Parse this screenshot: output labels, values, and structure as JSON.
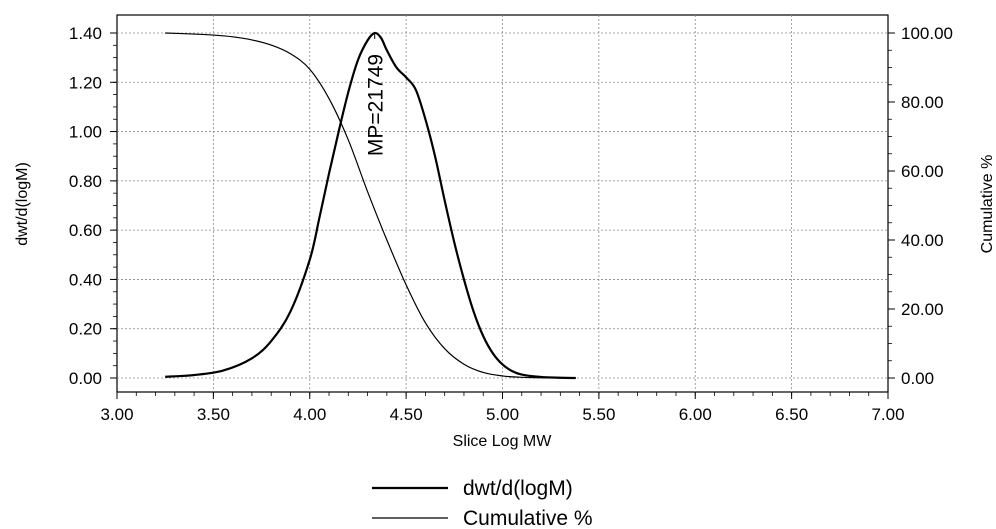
{
  "chart_data": {
    "type": "line",
    "xlabel": "Slice Log MW",
    "ylabel": "dwt/d(logM)",
    "y2label": "Cumulative %",
    "xlim": [
      3.0,
      7.0
    ],
    "ylim": [
      0.0,
      1.4
    ],
    "y2lim": [
      0.0,
      100.0
    ],
    "x_ticks": [
      "3.00",
      "3.50",
      "4.00",
      "4.50",
      "5.00",
      "5.50",
      "6.00",
      "6.50",
      "7.00"
    ],
    "y_ticks": [
      "0.00",
      "0.20",
      "0.40",
      "0.60",
      "0.80",
      "1.00",
      "1.20",
      "1.40"
    ],
    "y2_ticks": [
      "0.00",
      "20.00",
      "40.00",
      "60.00",
      "80.00",
      "100.00"
    ],
    "grid": true,
    "legend_position": "bottom-center",
    "annotation": {
      "text": "MP=21749",
      "x": 4.337
    },
    "series": [
      {
        "name": "dwt/d(logM)",
        "axis": "left",
        "x": [
          3.25,
          3.4,
          3.55,
          3.7,
          3.8,
          3.9,
          4.0,
          4.05,
          4.1,
          4.15,
          4.2,
          4.25,
          4.3,
          4.337,
          4.37,
          4.4,
          4.45,
          4.5,
          4.55,
          4.6,
          4.65,
          4.7,
          4.75,
          4.8,
          4.85,
          4.9,
          4.95,
          5.0,
          5.05,
          5.1,
          5.2,
          5.3,
          5.38
        ],
        "values": [
          0.005,
          0.012,
          0.03,
          0.08,
          0.15,
          0.27,
          0.48,
          0.65,
          0.83,
          1.0,
          1.16,
          1.29,
          1.37,
          1.4,
          1.38,
          1.33,
          1.26,
          1.22,
          1.17,
          1.05,
          0.9,
          0.72,
          0.55,
          0.4,
          0.27,
          0.17,
          0.1,
          0.055,
          0.028,
          0.014,
          0.004,
          0.001,
          0.0
        ]
      },
      {
        "name": "Cumulative %",
        "axis": "right",
        "x": [
          3.25,
          3.4,
          3.5,
          3.6,
          3.7,
          3.8,
          3.9,
          4.0,
          4.1,
          4.2,
          4.3,
          4.4,
          4.5,
          4.6,
          4.7,
          4.8,
          4.9,
          5.0,
          5.1,
          5.2,
          5.3,
          5.38
        ],
        "values": [
          100.0,
          99.7,
          99.4,
          98.9,
          98.0,
          96.5,
          94.0,
          89.5,
          81.0,
          69.0,
          54.0,
          40.0,
          27.0,
          16.0,
          8.5,
          4.0,
          1.6,
          0.6,
          0.2,
          0.05,
          0.01,
          0.0
        ]
      }
    ]
  }
}
